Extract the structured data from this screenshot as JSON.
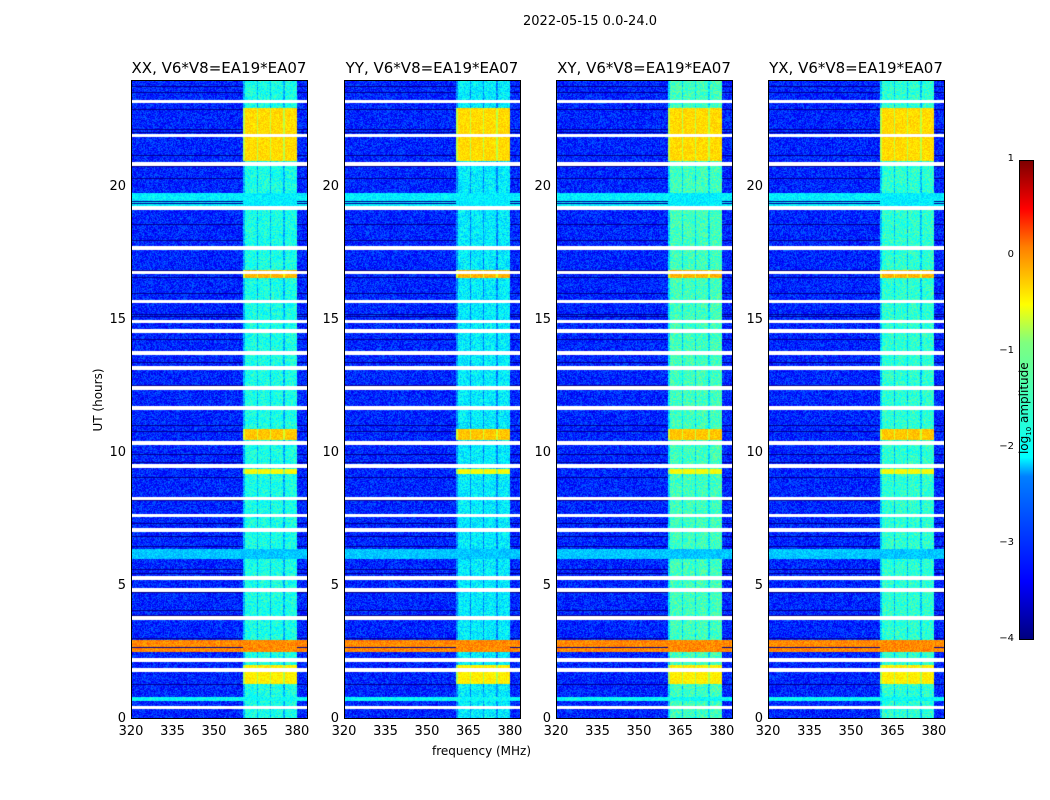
{
  "chart_data": {
    "type": "heatmap",
    "title": "2022-05-15 0.0-24.0",
    "xlabel": "frequency (MHz)",
    "ylabel": "UT (hours)",
    "xlim": [
      320,
      384
    ],
    "ylim": [
      0,
      24
    ],
    "xticks": [
      320,
      335,
      350,
      365,
      380
    ],
    "yticks": [
      0,
      5,
      10,
      15,
      20
    ],
    "panels": [
      {
        "title": "XX, V6*V8=EA19*EA07",
        "band_gain": 1.0
      },
      {
        "title": "YY, V6*V8=EA19*EA07",
        "band_gain": 1.1
      },
      {
        "title": "XY, V6*V8=EA19*EA07",
        "band_gain": 0.9
      },
      {
        "title": "YX, V6*V8=EA19*EA07",
        "band_gain": 0.95
      }
    ],
    "background_log_amp": -3.2,
    "rfi_band_mhz": [
      360.5,
      380
    ],
    "rfi_band_log_amp": -2.0,
    "flagged_hours": [
      23.25,
      21.97,
      20.88,
      19.24,
      17.73,
      16.8,
      15.71,
      14.96,
      14.59,
      13.76,
      13.2,
      12.45,
      11.7,
      10.39,
      9.52,
      8.29,
      7.65,
      7.09,
      5.29,
      4.84,
      3.79,
      2.21,
      1.84,
      0.41
    ],
    "bright_epochs": [
      {
        "from": 21.0,
        "to": 23.0,
        "log_amp": -0.7
      },
      {
        "from": 16.6,
        "to": 16.9,
        "log_amp": -0.5
      },
      {
        "from": 10.5,
        "to": 10.9,
        "log_amp": -0.6
      },
      {
        "from": 9.2,
        "to": 9.4,
        "log_amp": -0.9
      },
      {
        "from": 1.3,
        "to": 2.0,
        "log_amp": -0.8
      }
    ],
    "broadband_epochs": [
      {
        "from": 2.5,
        "to": 2.95,
        "log_amp": -0.3
      },
      {
        "from": 19.3,
        "to": 19.8,
        "log_amp": -2.2
      },
      {
        "from": 6.0,
        "to": 6.4,
        "log_amp": -2.4
      },
      {
        "from": 0.65,
        "to": 0.8,
        "log_amp": -2.1
      }
    ],
    "colorbar": {
      "label": "log10 amplitude",
      "range": [
        -4,
        1
      ],
      "ticks": [
        -4,
        -3,
        -2,
        -1,
        0,
        1
      ]
    }
  }
}
